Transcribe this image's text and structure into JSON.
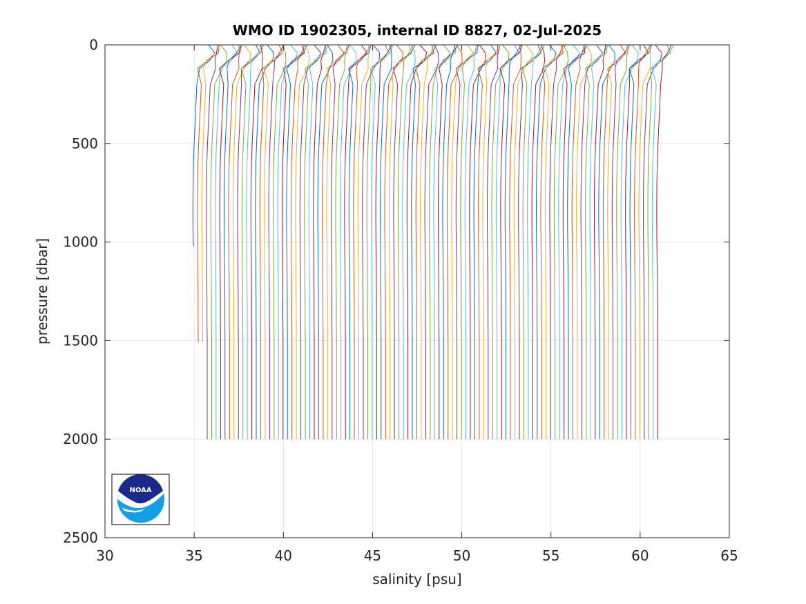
{
  "chart_data": {
    "type": "line",
    "title": "WMO ID 1902305, internal ID 8827, 02-Jul-2025",
    "xlabel": "salinity [psu]",
    "ylabel": "pressure [dbar]",
    "xlim": [
      30,
      65
    ],
    "ylim": [
      0,
      2500
    ],
    "y_reversed": true,
    "grid": true,
    "legend": "none",
    "xticks": [
      "30",
      "35",
      "40",
      "45",
      "50",
      "55",
      "60",
      "65"
    ],
    "yticks": [
      "0",
      "500",
      "1000",
      "1500",
      "2000",
      "2500"
    ],
    "xtick_values": [
      30,
      35,
      40,
      45,
      50,
      55,
      60,
      65
    ],
    "ytick_values": [
      0,
      500,
      1000,
      1500,
      2000,
      2500
    ],
    "series_colors": [
      "#0072BD",
      "#D95319",
      "#EDB120",
      "#7E2F8E",
      "#77AC30",
      "#4DBEEE",
      "#A2142F"
    ],
    "profile_offset_psu": 0.25,
    "profile_count": 105,
    "series": [
      {
        "pressure": [
          0,
          40,
          80,
          120,
          200,
          300,
          400,
          500,
          600,
          700,
          800,
          900,
          1000,
          1100,
          1200,
          1300,
          1400,
          1500,
          1600,
          1700,
          1800,
          1900,
          2000
        ],
        "salinity": [
          35.8,
          35.85,
          35.55,
          35.25,
          35.15,
          35.1,
          35.05,
          35.0,
          34.96,
          34.94,
          34.93,
          34.93,
          34.94,
          34.95,
          34.96,
          34.97,
          34.97,
          34.98,
          34.98,
          34.98,
          34.98,
          34.98,
          34.98
        ],
        "max_pressure": 2000
      }
    ]
  },
  "logo": {
    "text": "NOAA"
  }
}
